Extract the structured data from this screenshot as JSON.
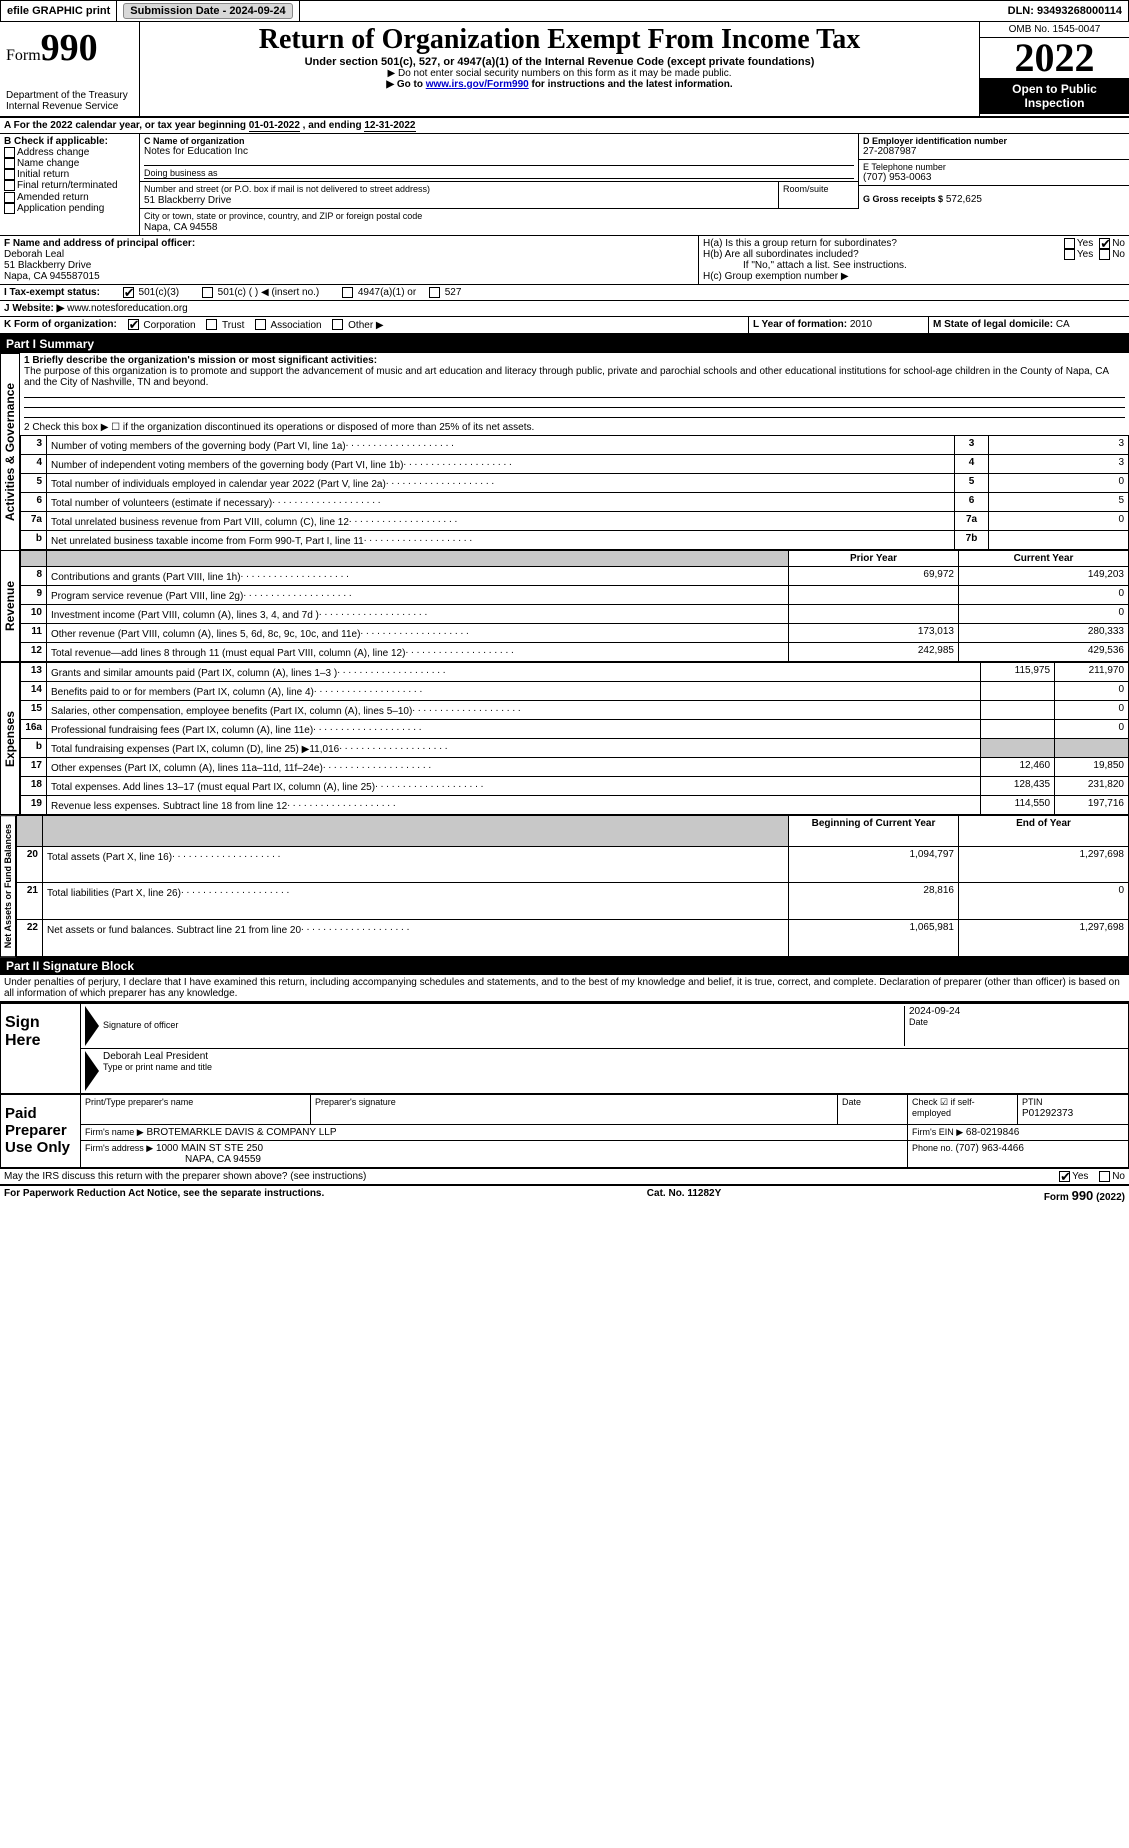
{
  "topbar": {
    "efile": "efile GRAPHIC print",
    "submission_label": "Submission Date - 2024-09-24",
    "dln": "DLN: 93493268000114"
  },
  "header": {
    "form_label": "Form",
    "form_number": "990",
    "dept": "Department of the Treasury",
    "irs": "Internal Revenue Service",
    "title": "Return of Organization Exempt From Income Tax",
    "subtitle": "Under section 501(c), 527, or 4947(a)(1) of the Internal Revenue Code (except private foundations)",
    "note1": "▶ Do not enter social security numbers on this form as it may be made public.",
    "note2_a": "▶ Go to ",
    "note2_link": "www.irs.gov/Form990",
    "note2_b": " for instructions and the latest information.",
    "omb": "OMB No. 1545-0047",
    "year": "2022",
    "open": "Open to Public Inspection"
  },
  "period": {
    "a_label": "A For the 2022 calendar year, or tax year beginning ",
    "begin": "01-01-2022",
    "mid": " , and ending ",
    "end": "12-31-2022"
  },
  "boxB": {
    "label": "B Check if applicable:",
    "opts": [
      "Address change",
      "Name change",
      "Initial return",
      "Final return/terminated",
      "Amended return",
      "Application pending"
    ]
  },
  "boxC": {
    "name_label": "C Name of organization",
    "name": "Notes for Education Inc",
    "dba_label": "Doing business as",
    "dba": "",
    "street_label": "Number and street (or P.O. box if mail is not delivered to street address)",
    "room_label": "Room/suite",
    "street": "51 Blackberry Drive",
    "city_label": "City or town, state or province, country, and ZIP or foreign postal code",
    "city": "Napa, CA  94558"
  },
  "boxD": {
    "label": "D Employer identification number",
    "value": "27-2087987"
  },
  "boxE": {
    "label": "E Telephone number",
    "value": "(707) 953-0063"
  },
  "boxG": {
    "label": "G Gross receipts $",
    "value": "572,625"
  },
  "boxF": {
    "label": "F Name and address of principal officer:",
    "name": "Deborah Leal",
    "addr1": "51 Blackberry Drive",
    "addr2": "Napa, CA  945587015"
  },
  "boxH": {
    "a": "H(a)  Is this a group return for subordinates?",
    "b": "H(b)  Are all subordinates included?",
    "b_note": "If \"No,\" attach a list. See instructions.",
    "c": "H(c)  Group exemption number ▶",
    "yes": "Yes",
    "no": "No"
  },
  "boxI": {
    "label": "I   Tax-exempt status:",
    "o1": "501(c)(3)",
    "o2": "501(c) (  ) ◀ (insert no.)",
    "o3": "4947(a)(1) or",
    "o4": "527"
  },
  "boxJ": {
    "label": "J   Website: ▶",
    "value": " www.notesforeducation.org"
  },
  "boxK": {
    "label": "K Form of organization:",
    "o1": "Corporation",
    "o2": "Trust",
    "o3": "Association",
    "o4": "Other ▶"
  },
  "boxL": {
    "label": "L Year of formation: ",
    "value": "2010"
  },
  "boxM": {
    "label": "M State of legal domicile: ",
    "value": "CA"
  },
  "partI": {
    "bar": "Part I      Summary",
    "q1": "1   Briefly describe the organization's mission or most significant activities:",
    "mission": "The purpose of this organization is to promote and support the advancement of music and art education and literacy through public, private and parochial schools and other educational institutions for school-age children in the County of Napa, CA and the City of Nashville, TN and beyond.",
    "q2": "2   Check this box ▶ ☐ if the organization discontinued its operations or disposed of more than 25% of its net assets.",
    "rows_gov": [
      {
        "n": "3",
        "t": "Number of voting members of the governing body (Part VI, line 1a)",
        "box": "3",
        "v": "3"
      },
      {
        "n": "4",
        "t": "Number of independent voting members of the governing body (Part VI, line 1b)",
        "box": "4",
        "v": "3"
      },
      {
        "n": "5",
        "t": "Total number of individuals employed in calendar year 2022 (Part V, line 2a)",
        "box": "5",
        "v": "0"
      },
      {
        "n": "6",
        "t": "Total number of volunteers (estimate if necessary)",
        "box": "6",
        "v": "5"
      },
      {
        "n": "7a",
        "t": "Total unrelated business revenue from Part VIII, column (C), line 12",
        "box": "7a",
        "v": "0"
      },
      {
        "n": "b",
        "t": "Net unrelated business taxable income from Form 990-T, Part I, line 11",
        "box": "7b",
        "v": ""
      }
    ],
    "col_prior": "Prior Year",
    "col_current": "Current Year",
    "rows_rev": [
      {
        "n": "8",
        "t": "Contributions and grants (Part VIII, line 1h)",
        "p": "69,972",
        "c": "149,203"
      },
      {
        "n": "9",
        "t": "Program service revenue (Part VIII, line 2g)",
        "p": "",
        "c": "0"
      },
      {
        "n": "10",
        "t": "Investment income (Part VIII, column (A), lines 3, 4, and 7d )",
        "p": "",
        "c": "0"
      },
      {
        "n": "11",
        "t": "Other revenue (Part VIII, column (A), lines 5, 6d, 8c, 9c, 10c, and 11e)",
        "p": "173,013",
        "c": "280,333"
      },
      {
        "n": "12",
        "t": "Total revenue—add lines 8 through 11 (must equal Part VIII, column (A), line 12)",
        "p": "242,985",
        "c": "429,536"
      }
    ],
    "rows_exp": [
      {
        "n": "13",
        "t": "Grants and similar amounts paid (Part IX, column (A), lines 1–3 )",
        "p": "115,975",
        "c": "211,970"
      },
      {
        "n": "14",
        "t": "Benefits paid to or for members (Part IX, column (A), line 4)",
        "p": "",
        "c": "0"
      },
      {
        "n": "15",
        "t": "Salaries, other compensation, employee benefits (Part IX, column (A), lines 5–10)",
        "p": "",
        "c": "0"
      },
      {
        "n": "16a",
        "t": "Professional fundraising fees (Part IX, column (A), line 11e)",
        "p": "",
        "c": "0"
      },
      {
        "n": "b",
        "t": "Total fundraising expenses (Part IX, column (D), line 25) ▶11,016",
        "p": "GREY",
        "c": "GREY"
      },
      {
        "n": "17",
        "t": "Other expenses (Part IX, column (A), lines 11a–11d, 11f–24e)",
        "p": "12,460",
        "c": "19,850"
      },
      {
        "n": "18",
        "t": "Total expenses. Add lines 13–17 (must equal Part IX, column (A), line 25)",
        "p": "128,435",
        "c": "231,820"
      },
      {
        "n": "19",
        "t": "Revenue less expenses. Subtract line 18 from line 12",
        "p": "114,550",
        "c": "197,716"
      }
    ],
    "col_begin": "Beginning of Current Year",
    "col_end": "End of Year",
    "rows_net": [
      {
        "n": "20",
        "t": "Total assets (Part X, line 16)",
        "p": "1,094,797",
        "c": "1,297,698"
      },
      {
        "n": "21",
        "t": "Total liabilities (Part X, line 26)",
        "p": "28,816",
        "c": "0"
      },
      {
        "n": "22",
        "t": "Net assets or fund balances. Subtract line 21 from line 20",
        "p": "1,065,981",
        "c": "1,297,698"
      }
    ],
    "tab_gov": "Activities & Governance",
    "tab_rev": "Revenue",
    "tab_exp": "Expenses",
    "tab_net": "Net Assets or Fund Balances"
  },
  "partII": {
    "bar": "Part II     Signature Block",
    "decl": "Under penalties of perjury, I declare that I have examined this return, including accompanying schedules and statements, and to the best of my knowledge and belief, it is true, correct, and complete. Declaration of preparer (other than officer) is based on all information of which preparer has any knowledge.",
    "sign_here": "Sign Here",
    "sig_officer": "Signature of officer",
    "date": "Date",
    "date_val": "2024-09-24",
    "typed_name": "Deborah Leal  President",
    "typed_label": "Type or print name and title",
    "paid": "Paid Preparer Use Only",
    "prep_name_label": "Print/Type preparer's name",
    "prep_sig_label": "Preparer's signature",
    "prep_date_label": "Date",
    "check_self": "Check ☑ if self-employed",
    "ptin_label": "PTIN",
    "ptin": "P01292373",
    "firm_name_label": "Firm's name    ▶",
    "firm_name": "BROTEMARKLE DAVIS & COMPANY LLP",
    "firm_ein_label": "Firm's EIN ▶",
    "firm_ein": "68-0219846",
    "firm_addr_label": "Firm's address ▶",
    "firm_addr1": "1000 MAIN ST STE 250",
    "firm_addr2": "NAPA, CA  94559",
    "phone_label": "Phone no. ",
    "phone": "(707) 963-4466",
    "discuss": "May the IRS discuss this return with the preparer shown above? (see instructions)",
    "yes": "Yes",
    "no": "No"
  },
  "footer": {
    "left": "For Paperwork Reduction Act Notice, see the separate instructions.",
    "mid": "Cat. No. 11282Y",
    "right": "Form 990 (2022)"
  },
  "colors": {
    "bg": "#ffffff",
    "border": "#000000",
    "grey_fill": "#c8c8c8",
    "btn_bg": "#d8d8d8",
    "link": "#0000cc"
  }
}
